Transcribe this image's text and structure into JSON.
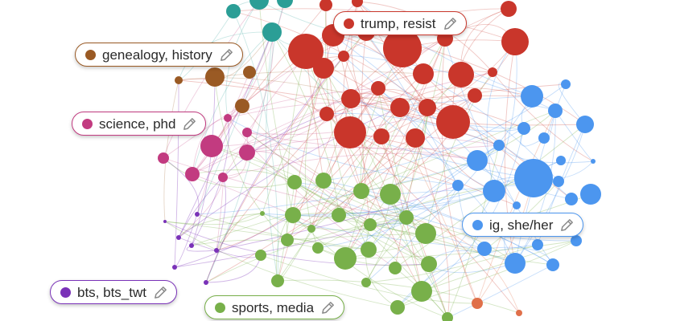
{
  "clusters": [
    {
      "key": "trump",
      "label": "trump, resist",
      "color": "#c9362b"
    },
    {
      "key": "genealogy",
      "label": "genealogy, history",
      "color": "#9a5a24"
    },
    {
      "key": "science",
      "label": "science, phd",
      "color": "#c23b80"
    },
    {
      "key": "ig",
      "label": "ig, she/her",
      "color": "#4c96ef"
    },
    {
      "key": "bts",
      "label": "bts, bts_twt",
      "color": "#7a32b8"
    },
    {
      "key": "sports",
      "label": "sports, media",
      "color": "#78b04a"
    }
  ],
  "other_colors": {
    "teal": "#2b9e96",
    "orange": "#e0704a",
    "edit_icon": "#8a8a8a"
  },
  "icons": {
    "edit": "pencil-icon"
  }
}
